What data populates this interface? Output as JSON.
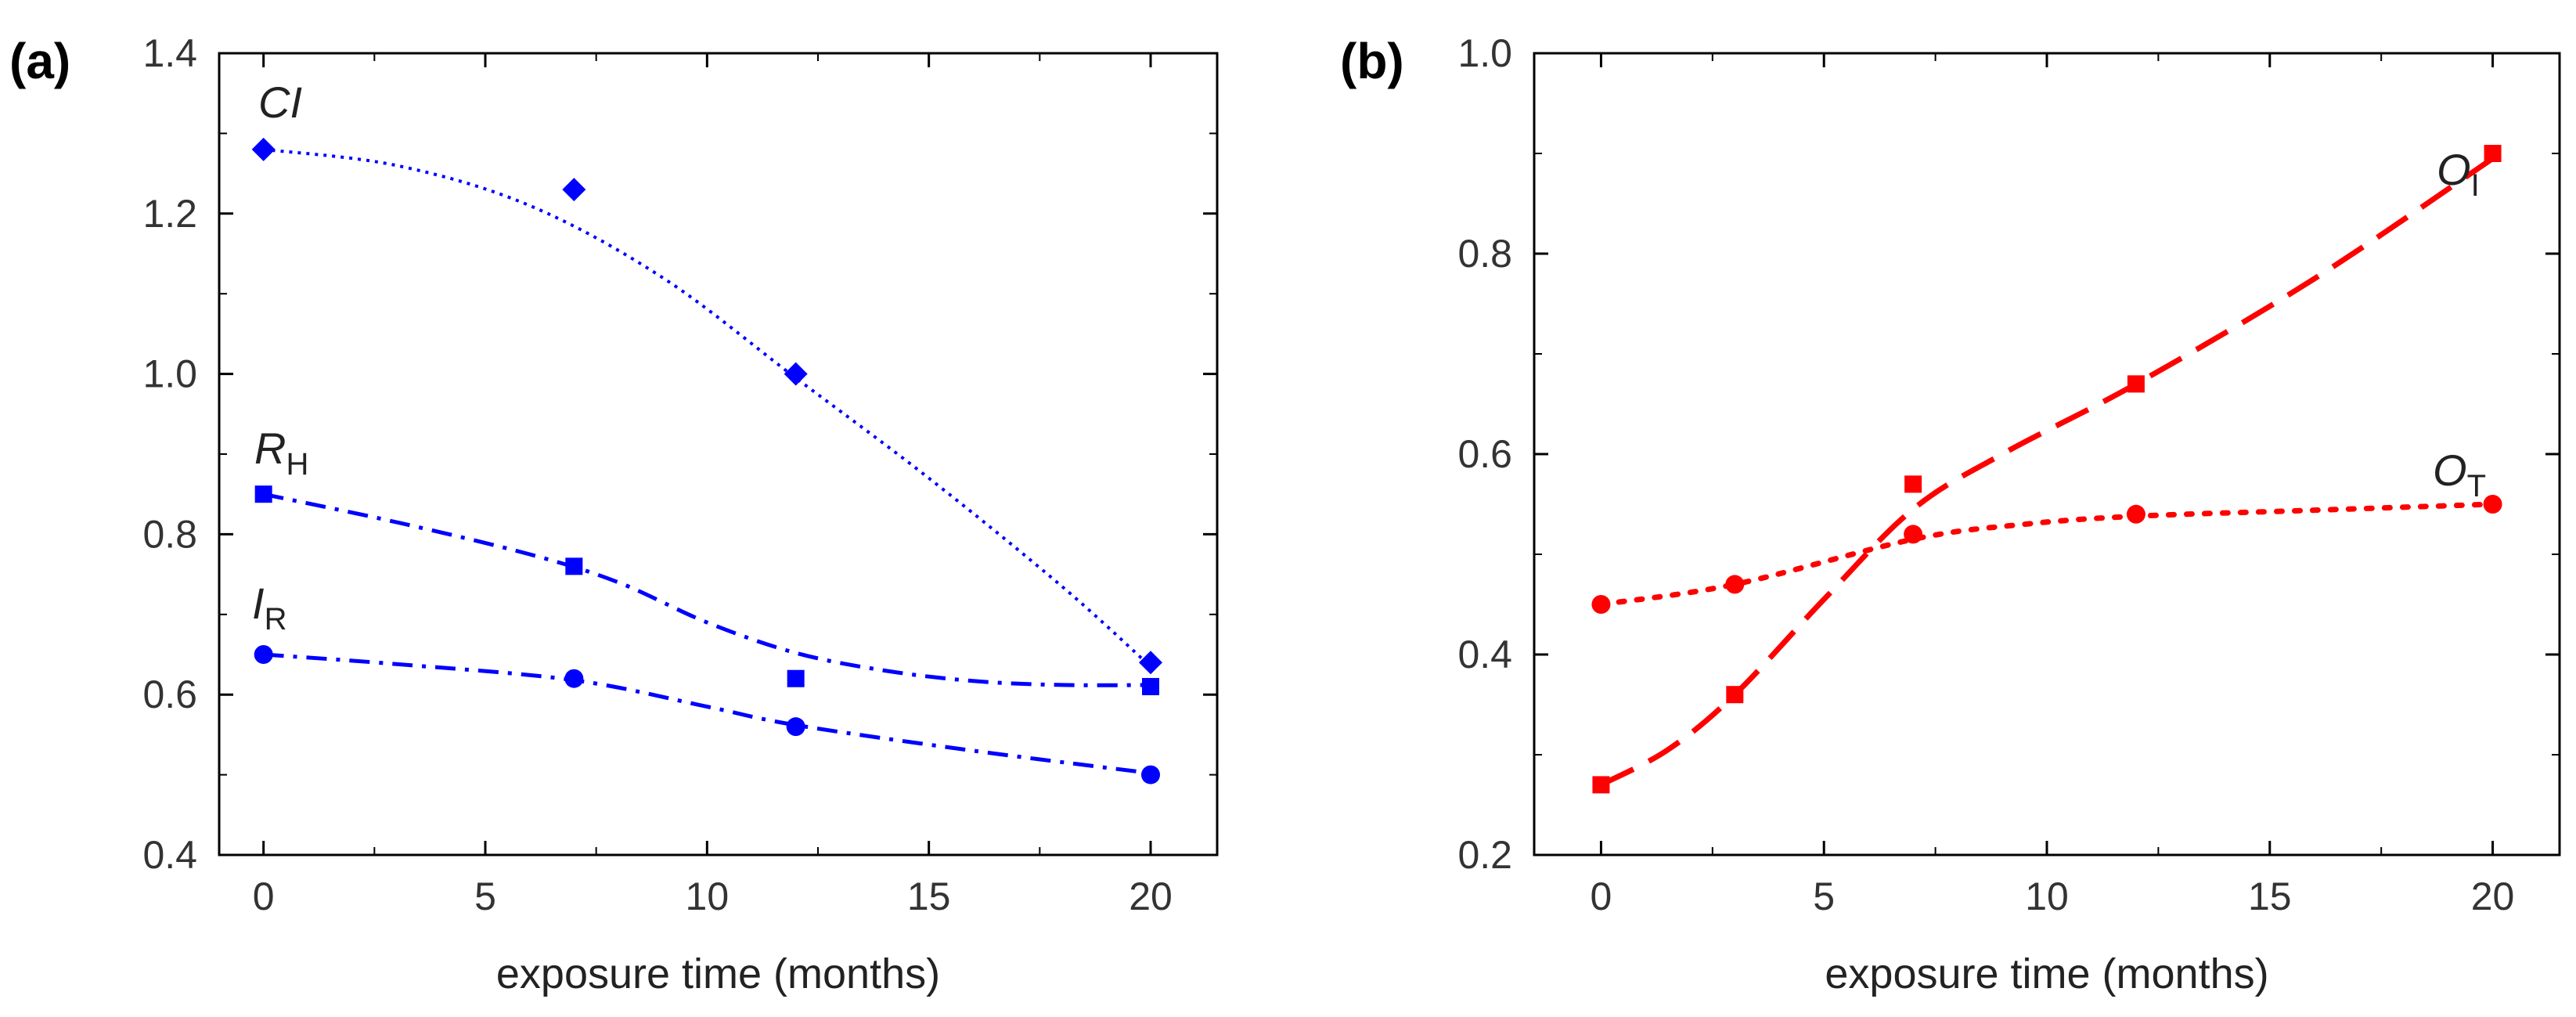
{
  "chart_data": [
    {
      "type": "scatter",
      "panel_label": "(a)",
      "xlabel": "exposure time (months)",
      "ylabel": "",
      "xlim": [
        -1,
        21.5
      ],
      "ylim": [
        0.4,
        1.4
      ],
      "x_ticks": [
        0,
        5,
        10,
        15,
        20
      ],
      "y_ticks": [
        0.4,
        0.6,
        0.8,
        1.0,
        1.2,
        1.4
      ],
      "y_tick_labels": [
        "0.4",
        "0.6",
        "0.8",
        "1.0",
        "1.2",
        "1.4"
      ],
      "grid": false,
      "series": [
        {
          "name": "CI",
          "name_main": "CI",
          "name_sub": "",
          "name_italic": true,
          "marker": "diamond",
          "line": "dotted",
          "color": "#0000ff",
          "x": [
            0,
            7,
            12,
            20
          ],
          "y": [
            1.28,
            1.23,
            1.0,
            0.64
          ],
          "fit": [
            [
              0,
              1.28
            ],
            [
              3,
              1.26
            ],
            [
              6,
              1.21
            ],
            [
              9,
              1.12
            ],
            [
              12,
              0.995
            ],
            [
              15,
              0.87
            ],
            [
              18,
              0.735
            ],
            [
              20,
              0.635
            ]
          ]
        },
        {
          "name": "RH",
          "name_main": "R",
          "name_sub": "H",
          "name_italic": true,
          "marker": "square",
          "line": "dashdot",
          "color": "#0000ff",
          "x": [
            0,
            7,
            12,
            20
          ],
          "y": [
            0.85,
            0.76,
            0.62,
            0.61
          ],
          "fit": [
            [
              0,
              0.85
            ],
            [
              3,
              0.815
            ],
            [
              6,
              0.775
            ],
            [
              8,
              0.74
            ],
            [
              10,
              0.69
            ],
            [
              12,
              0.652
            ],
            [
              14,
              0.63
            ],
            [
              16,
              0.617
            ],
            [
              18,
              0.612
            ],
            [
              20,
              0.612
            ]
          ]
        },
        {
          "name": "IR",
          "name_main": "I",
          "name_sub": "R",
          "name_italic": true,
          "marker": "circle",
          "line": "dashdot",
          "color": "#0000ff",
          "x": [
            0,
            7,
            12,
            20
          ],
          "y": [
            0.65,
            0.62,
            0.56,
            0.5
          ],
          "fit": [
            [
              0,
              0.65
            ],
            [
              3,
              0.638
            ],
            [
              7,
              0.618
            ],
            [
              10,
              0.585
            ],
            [
              12,
              0.562
            ],
            [
              16,
              0.53
            ],
            [
              20,
              0.502
            ]
          ]
        }
      ]
    },
    {
      "type": "scatter",
      "panel_label": "(b)",
      "xlabel": "exposure time (months)",
      "ylabel": "",
      "xlim": [
        -1.5,
        21.5
      ],
      "ylim": [
        0.2,
        1.0
      ],
      "x_ticks": [
        0,
        5,
        10,
        15,
        20
      ],
      "y_ticks": [
        0.2,
        0.4,
        0.6,
        0.8,
        1.0
      ],
      "y_tick_labels": [
        "0.2",
        "0.4",
        "0.6",
        "0.8",
        "1.0"
      ],
      "grid": false,
      "series": [
        {
          "name": "OI",
          "name_main": "O",
          "name_sub": "I",
          "name_italic": true,
          "marker": "square",
          "line": "dashed",
          "color": "#ff0000",
          "x": [
            0,
            3,
            7,
            12,
            20
          ],
          "y": [
            0.27,
            0.36,
            0.57,
            0.67,
            0.9
          ],
          "fit": [
            [
              0,
              0.27
            ],
            [
              1.5,
              0.305
            ],
            [
              3,
              0.36
            ],
            [
              5,
              0.455
            ],
            [
              7,
              0.545
            ],
            [
              9,
              0.6
            ],
            [
              12,
              0.67
            ],
            [
              16,
              0.775
            ],
            [
              20,
              0.895
            ]
          ]
        },
        {
          "name": "OT",
          "name_main": "O",
          "name_sub": "T",
          "name_italic": true,
          "marker": "circle",
          "line": "dotted",
          "color": "#ff0000",
          "x": [
            0,
            3,
            7,
            12,
            20
          ],
          "y": [
            0.45,
            0.47,
            0.52,
            0.54,
            0.55
          ],
          "fit": [
            [
              0,
              0.45
            ],
            [
              3,
              0.47
            ],
            [
              7,
              0.515
            ],
            [
              9.5,
              0.53
            ],
            [
              12,
              0.538
            ],
            [
              16,
              0.544
            ],
            [
              20,
              0.55
            ]
          ]
        }
      ]
    }
  ]
}
